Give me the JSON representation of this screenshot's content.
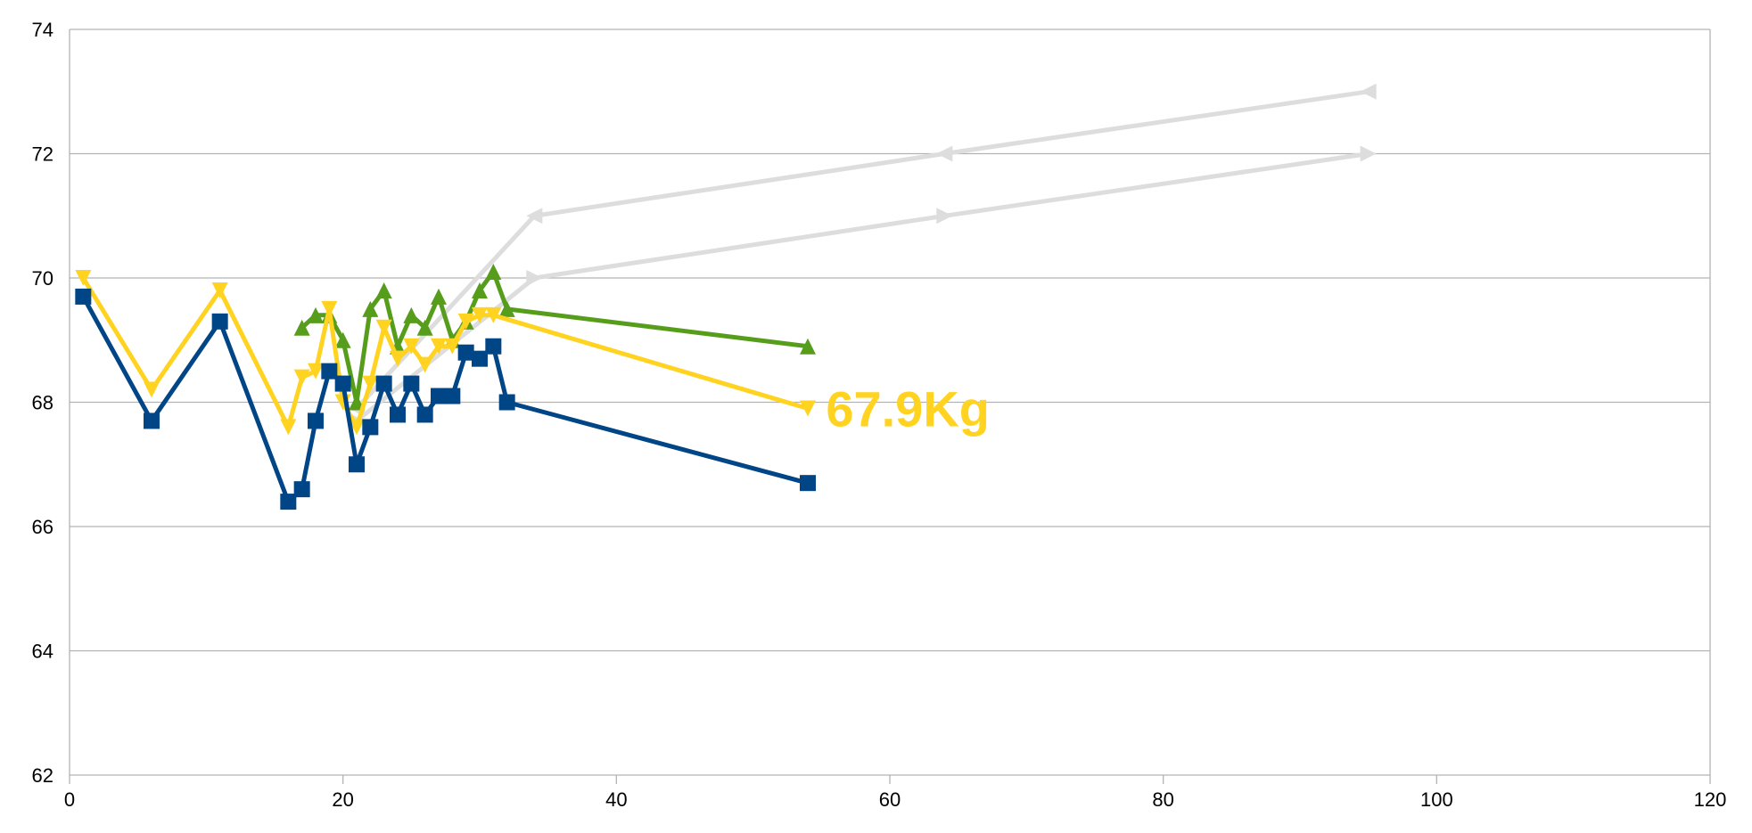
{
  "chart_data": {
    "type": "line",
    "xlim": [
      0,
      120
    ],
    "ylim": [
      62,
      74
    ],
    "x_ticks": [
      0,
      20,
      40,
      60,
      80,
      100,
      120
    ],
    "y_ticks": [
      62,
      64,
      66,
      68,
      70,
      72,
      74
    ],
    "x_tick_labels": [
      "0",
      "20",
      "40",
      "60",
      "80",
      "100",
      "120"
    ],
    "y_tick_labels": [
      "62",
      "64",
      "66",
      "68",
      "70",
      "72",
      "74"
    ],
    "grid": "horizontal",
    "annotation": {
      "text": "67.9Kg",
      "x": 55,
      "y": 67.9,
      "color": "#FFD320"
    },
    "series": [
      {
        "color": "#DDDDDD",
        "marker": "triangle-left",
        "points": [
          [
            21,
            67.9
          ],
          [
            34,
            71
          ],
          [
            64,
            72
          ],
          [
            95,
            73
          ]
        ]
      },
      {
        "color": "#DDDDDD",
        "marker": "triangle-right",
        "points": [
          [
            21,
            67.7
          ],
          [
            34,
            70
          ],
          [
            64,
            71
          ],
          [
            95,
            72
          ]
        ]
      },
      {
        "color": "#579D1C",
        "marker": "triangle-up",
        "points": [
          [
            17,
            69.2
          ],
          [
            18,
            69.4
          ],
          [
            19,
            69.4
          ],
          [
            20,
            69.0
          ],
          [
            21,
            68.0
          ],
          [
            22,
            69.5
          ],
          [
            23,
            69.8
          ],
          [
            24,
            68.9
          ],
          [
            25,
            69.4
          ],
          [
            26,
            69.2
          ],
          [
            27,
            69.7
          ],
          [
            28,
            69.0
          ],
          [
            29,
            69.3
          ],
          [
            30,
            69.8
          ],
          [
            31,
            70.1
          ],
          [
            32,
            69.5
          ],
          [
            54,
            68.9
          ]
        ]
      },
      {
        "color": "#FFD320",
        "marker": "triangle-down",
        "points": [
          [
            1,
            70.0
          ],
          [
            6,
            68.2
          ],
          [
            11,
            69.8
          ],
          [
            16,
            67.6
          ],
          [
            17,
            68.4
          ],
          [
            18,
            68.5
          ],
          [
            19,
            69.5
          ],
          [
            20,
            68.0
          ],
          [
            21,
            67.6
          ],
          [
            22,
            68.3
          ],
          [
            23,
            69.2
          ],
          [
            24,
            68.7
          ],
          [
            25,
            68.9
          ],
          [
            26,
            68.6
          ],
          [
            27,
            68.9
          ],
          [
            28,
            68.9
          ],
          [
            29,
            69.3
          ],
          [
            30,
            69.4
          ],
          [
            31,
            69.4
          ],
          [
            54,
            67.9
          ]
        ]
      },
      {
        "color": "#004586",
        "marker": "square",
        "points": [
          [
            1,
            69.7
          ],
          [
            6,
            67.7
          ],
          [
            11,
            69.3
          ],
          [
            16,
            66.4
          ],
          [
            17,
            66.6
          ],
          [
            18,
            67.7
          ],
          [
            19,
            68.5
          ],
          [
            20,
            68.3
          ],
          [
            21,
            67.0
          ],
          [
            22,
            67.6
          ],
          [
            23,
            68.3
          ],
          [
            24,
            67.8
          ],
          [
            25,
            68.3
          ],
          [
            26,
            67.8
          ],
          [
            27,
            68.1
          ],
          [
            28,
            68.1
          ],
          [
            29,
            68.8
          ],
          [
            30,
            68.7
          ],
          [
            31,
            68.9
          ],
          [
            32,
            68.0
          ],
          [
            54,
            66.7
          ]
        ]
      }
    ]
  }
}
